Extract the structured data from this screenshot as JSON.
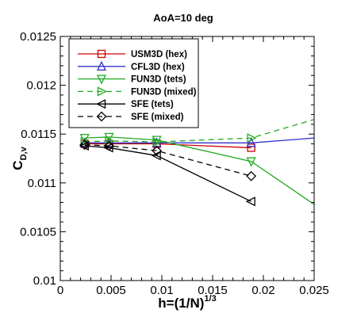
{
  "chart_data": {
    "type": "line",
    "title": "AoA=10 deg",
    "xlabel": {
      "base": "h=(1/N)",
      "sup": "1/3"
    },
    "ylabel": {
      "base": "C",
      "sub": "D,v"
    },
    "xlim": [
      0,
      0.025
    ],
    "ylim": [
      0.01,
      0.0125
    ],
    "xticks": [
      "0",
      "0.005",
      "0.01",
      "0.015",
      "0.02",
      "0.025"
    ],
    "yticks": [
      "0.01",
      "0.0105",
      "0.011",
      "0.0115",
      "0.012",
      "0.0125"
    ],
    "legend": "top-left",
    "series": [
      {
        "name": "USM3D (hex)",
        "color": "#cc0000",
        "dash": "solid",
        "marker": "square",
        "x": [
          0.0024,
          0.0048,
          0.0095,
          0.0188
        ],
        "y": [
          0.0114,
          0.0114,
          0.0114,
          0.01136
        ]
      },
      {
        "name": "CFL3D (hex)",
        "color": "#3333cc",
        "dash": "solid",
        "marker": "triangle-up",
        "x": [
          0.0024,
          0.0048,
          0.0095,
          0.0188,
          0.025
        ],
        "y": [
          0.01141,
          0.01141,
          0.01141,
          0.01141,
          0.01146
        ]
      },
      {
        "name": "FUN3D (tets)",
        "color": "#22aa22",
        "dash": "solid",
        "marker": "triangle-down",
        "x": [
          0.0024,
          0.0048,
          0.0095,
          0.0188,
          0.025
        ],
        "y": [
          0.01146,
          0.01147,
          0.01144,
          0.01122,
          0.01078
        ]
      },
      {
        "name": "FUN3D (mixed)",
        "color": "#22aa22",
        "dash": "dashed",
        "marker": "triangle-right",
        "x": [
          0.0024,
          0.0048,
          0.0095,
          0.0188,
          0.025
        ],
        "y": [
          0.01142,
          0.01143,
          0.01142,
          0.01146,
          0.01165
        ]
      },
      {
        "name": "SFE (tets)",
        "color": "#000000",
        "dash": "solid",
        "marker": "triangle-left",
        "x": [
          0.0024,
          0.0048,
          0.0095,
          0.0188
        ],
        "y": [
          0.01138,
          0.01136,
          0.01128,
          0.01081
        ]
      },
      {
        "name": "SFE (mixed)",
        "color": "#000000",
        "dash": "dashed",
        "marker": "diamond",
        "x": [
          0.0024,
          0.0048,
          0.0095,
          0.0188
        ],
        "y": [
          0.01139,
          0.01138,
          0.01133,
          0.01107
        ]
      }
    ]
  }
}
